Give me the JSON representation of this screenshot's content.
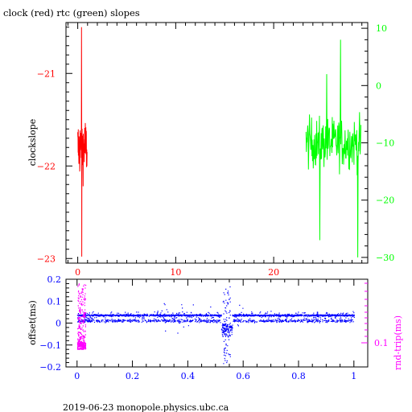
{
  "footer": {
    "text": "2019-06-23  monopole.physics.ubc.ca"
  },
  "chart_data": [
    {
      "type": "line",
      "title": "clock (red) rtc (green) slopes",
      "xlabel": "",
      "ylabel": "clockslope",
      "xlim": [
        -1.2,
        29.6
      ],
      "ylim": [
        -23.05,
        -20.45
      ],
      "y2lim": [
        -31,
        11
      ],
      "x_ticks": [
        0,
        10,
        20
      ],
      "y_ticks": [
        -21,
        -22,
        -23
      ],
      "y2_ticks": [
        10,
        0,
        -10,
        -20,
        -30
      ],
      "grid": false,
      "colors": {
        "clock": "#ff0000",
        "rtc": "#00ff00",
        "axis_left": "#ff0000",
        "axis_right": "#00ff00"
      },
      "series": [
        {
          "name": "clock",
          "axis": "left",
          "x_range": [
            0.0,
            0.95
          ],
          "y_envelope": [
            -22.45,
            -20.5
          ],
          "y_center": -21.8,
          "y_extremes": {
            "max": -20.5,
            "min": -22.98
          }
        },
        {
          "name": "rtc",
          "axis": "right",
          "x_range": [
            23.3,
            28.9
          ],
          "y_envelope": [
            -30,
            8
          ],
          "y_center": -10,
          "y_extremes": {
            "max": 8,
            "min": -30
          }
        }
      ]
    },
    {
      "type": "scatter",
      "title": "",
      "xlabel": "",
      "ylabel": "offset(ms)",
      "y2label": "rnd-trip(ms)",
      "xlim": [
        -0.04,
        1.05
      ],
      "ylim": [
        -0.2,
        0.2
      ],
      "x_ticks": [
        0,
        0.2,
        0.4,
        0.6,
        0.8,
        1
      ],
      "x_tick_labels": [
        "0",
        "0.2",
        "0.4",
        "0.6",
        "0.8",
        "1"
      ],
      "y_ticks": [
        0.2,
        0.1,
        0,
        -0.1,
        -0.2
      ],
      "y_tick_labels": [
        "0.2",
        "0.1",
        "0",
        "-0.1",
        "-0.2"
      ],
      "y2_tick_labels": [
        "0.1"
      ],
      "grid": false,
      "colors": {
        "offset": "#0000ff",
        "rndtrip": "#ff00ff",
        "axis_left": "#0000ff",
        "axis_right": "#ff00ff"
      },
      "series": [
        {
          "name": "offset",
          "x_range": [
            0,
            1
          ],
          "band_center": 0.035,
          "band_lower": 0.0,
          "band_upper": 0.05,
          "disturbance_x": 0.54,
          "disturbance_y_range": [
            -0.19,
            0.17
          ]
        },
        {
          "name": "rnd-trip",
          "x_range": [
            0,
            0.03
          ],
          "y_range_offset_units": [
            -0.12,
            0.18
          ]
        }
      ]
    }
  ]
}
